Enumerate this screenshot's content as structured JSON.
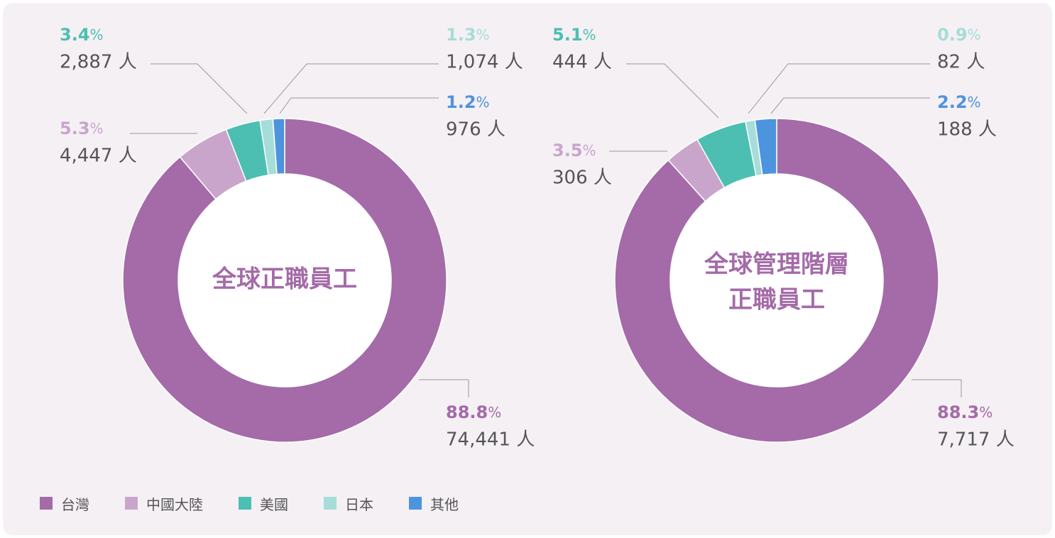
{
  "legend": [
    {
      "label": "台灣",
      "color": "#a46ba8"
    },
    {
      "label": "中國大陸",
      "color": "#c9a5cc"
    },
    {
      "label": "美國",
      "color": "#4cbfb2"
    },
    {
      "label": "日本",
      "color": "#a6ddd8"
    },
    {
      "label": "其他",
      "color": "#4d94de"
    }
  ],
  "colors": {
    "background": "#f5f0f4",
    "leader_line": "#999999",
    "count_text": "#555555"
  },
  "chart_data": [
    {
      "type": "pie",
      "donut": true,
      "center_label": [
        "全球正職員工"
      ],
      "unit": "人",
      "slices": [
        {
          "name": "台灣",
          "percent_label": "88.8",
          "count": "74,441",
          "value": 74441,
          "color": "#a46ba8"
        },
        {
          "name": "中國大陸",
          "percent_label": "5.3",
          "count": "4,447",
          "value": 4447,
          "color": "#c9a5cc"
        },
        {
          "name": "美國",
          "percent_label": "3.4",
          "count": "2,887",
          "value": 2887,
          "color": "#4cbfb2"
        },
        {
          "name": "日本",
          "percent_label": "1.3",
          "count": "1,074",
          "value": 1074,
          "color": "#a6ddd8"
        },
        {
          "name": "其他",
          "percent_label": "1.2",
          "count": "976",
          "value": 976,
          "color": "#4d94de"
        }
      ]
    },
    {
      "type": "pie",
      "donut": true,
      "center_label": [
        "全球管理階層",
        "正職員工"
      ],
      "unit": "人",
      "slices": [
        {
          "name": "台灣",
          "percent_label": "88.3",
          "count": "7,717",
          "value": 7717,
          "color": "#a46ba8"
        },
        {
          "name": "中國大陸",
          "percent_label": "3.5",
          "count": "306",
          "value": 306,
          "color": "#c9a5cc"
        },
        {
          "name": "美國",
          "percent_label": "5.1",
          "count": "444",
          "value": 444,
          "color": "#4cbfb2"
        },
        {
          "name": "日本",
          "percent_label": "0.9",
          "count": "82",
          "value": 82,
          "color": "#a6ddd8"
        },
        {
          "name": "其他",
          "percent_label": "2.2",
          "count": "188",
          "value": 188,
          "color": "#4d94de"
        }
      ]
    }
  ]
}
